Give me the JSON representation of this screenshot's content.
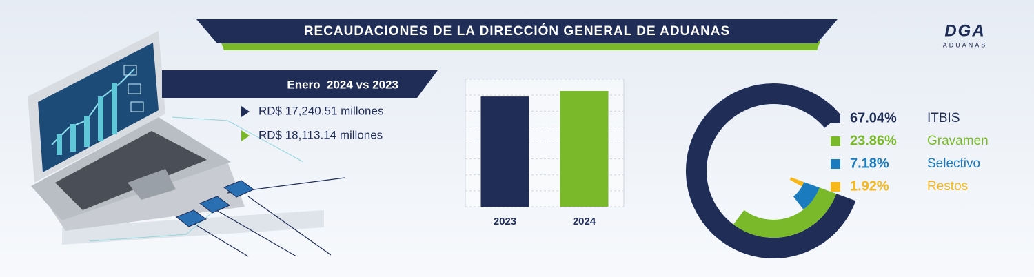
{
  "header": {
    "title": "RECAUDACIONES DE LA DIRECCIÓN GENERAL DE ADUANAS"
  },
  "logo": {
    "name": "DGA",
    "tagline": "ADUANAS"
  },
  "summary": {
    "title": "Enero  2024 vs 2023"
  },
  "chart_data": [
    {
      "type": "bar",
      "categories": [
        "2023",
        "2024"
      ],
      "values": [
        17240.51,
        18113.14
      ],
      "value_labels": [
        "RD$ 17,240.51 millones",
        "RD$ 18,113.14 millones"
      ],
      "colors": [
        "#1f2d57",
        "#7aba2a"
      ],
      "grid": true
    },
    {
      "type": "radial",
      "categories": [
        "ITBIS",
        "Gravamen",
        "Selectivo",
        "Restos"
      ],
      "values": [
        67.04,
        23.86,
        7.18,
        1.92
      ],
      "value_labels": [
        "67.04%",
        "23.86%",
        "7.18%",
        "1.92%"
      ],
      "colors": [
        "#1f2d57",
        "#7aba2a",
        "#1b7bbf",
        "#f6b81a"
      ]
    }
  ]
}
